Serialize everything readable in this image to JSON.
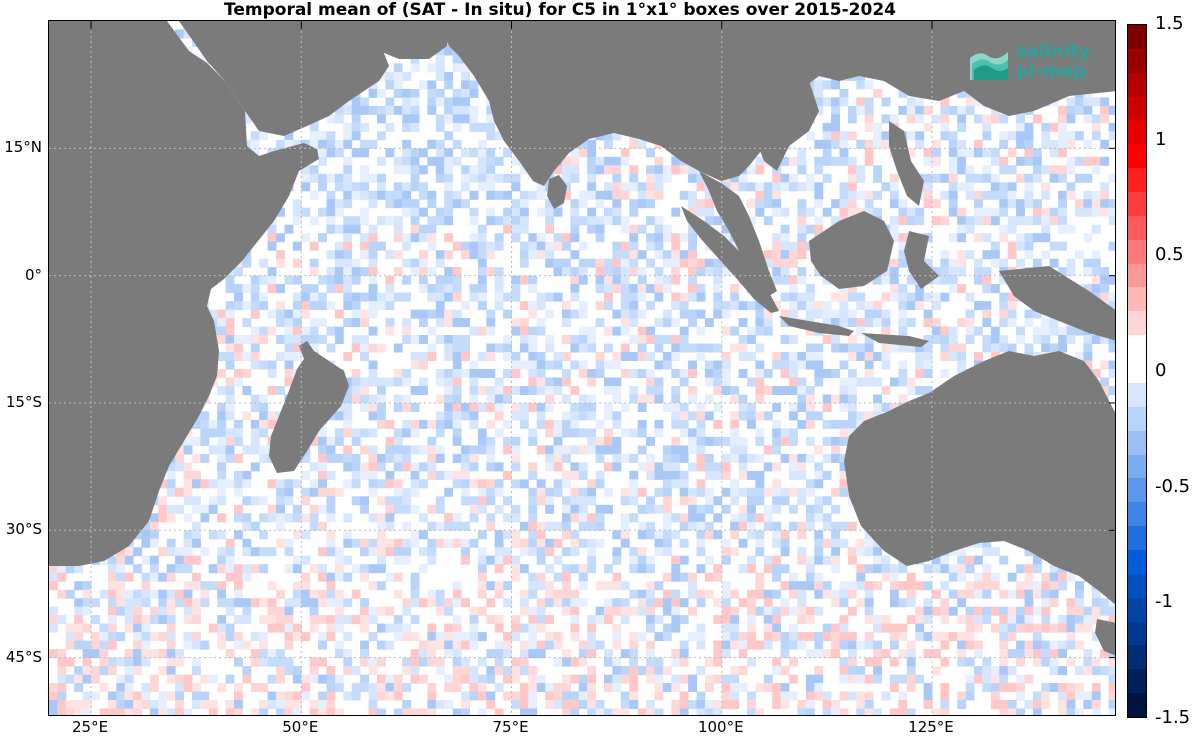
{
  "title": "Temporal mean of (SAT - In situ) for C5 in 1°x1° boxes over 2015-2024",
  "logo": {
    "line1": "salinity",
    "line2": "pi-mep",
    "icon": "layered-waves-icon",
    "color": "#2aa39a"
  },
  "map": {
    "lon_range": [
      20,
      147
    ],
    "lat_range": [
      -52,
      30
    ],
    "land_color": "#7b7b7b",
    "grid_color": "#bdbdbd",
    "lat_ticks": [
      {
        "value": 15,
        "label": "15°N"
      },
      {
        "value": 0,
        "label": "0°"
      },
      {
        "value": -15,
        "label": "15°S"
      },
      {
        "value": -30,
        "label": "30°S"
      },
      {
        "value": -45,
        "label": "45°S"
      }
    ],
    "lon_ticks": [
      {
        "value": 25,
        "label": "25°E"
      },
      {
        "value": 50,
        "label": "50°E"
      },
      {
        "value": 75,
        "label": "75°E"
      },
      {
        "value": 100,
        "label": "100°E"
      },
      {
        "value": 125,
        "label": "125°E"
      }
    ]
  },
  "colorbar": {
    "range": [
      -1.5,
      1.5
    ],
    "ticks": [
      {
        "value": 1.5,
        "label": "1.5"
      },
      {
        "value": 1,
        "label": "1"
      },
      {
        "value": 0.5,
        "label": "0.5"
      },
      {
        "value": 0,
        "label": "0"
      },
      {
        "value": -0.5,
        "label": "-0.5"
      },
      {
        "value": -1,
        "label": "-1"
      },
      {
        "value": -1.5,
        "label": "-1.5"
      }
    ],
    "colors_top_to_bottom": [
      "#7f0000",
      "#990000",
      "#b20000",
      "#cc0000",
      "#e60000",
      "#ff0000",
      "#ff1f1f",
      "#ff3d3d",
      "#ff5c5c",
      "#ff7a7a",
      "#ff9999",
      "#ffb8b8",
      "#ffd6d6",
      "#ffffff",
      "#ffffff",
      "#d6e6ff",
      "#b8d4fb",
      "#99c0f5",
      "#7aacf0",
      "#5c98ea",
      "#3d84e5",
      "#1f70df",
      "#005cd9",
      "#0050c0",
      "#0044a6",
      "#00388c",
      "#002c73",
      "#002059",
      "#001340"
    ]
  }
}
